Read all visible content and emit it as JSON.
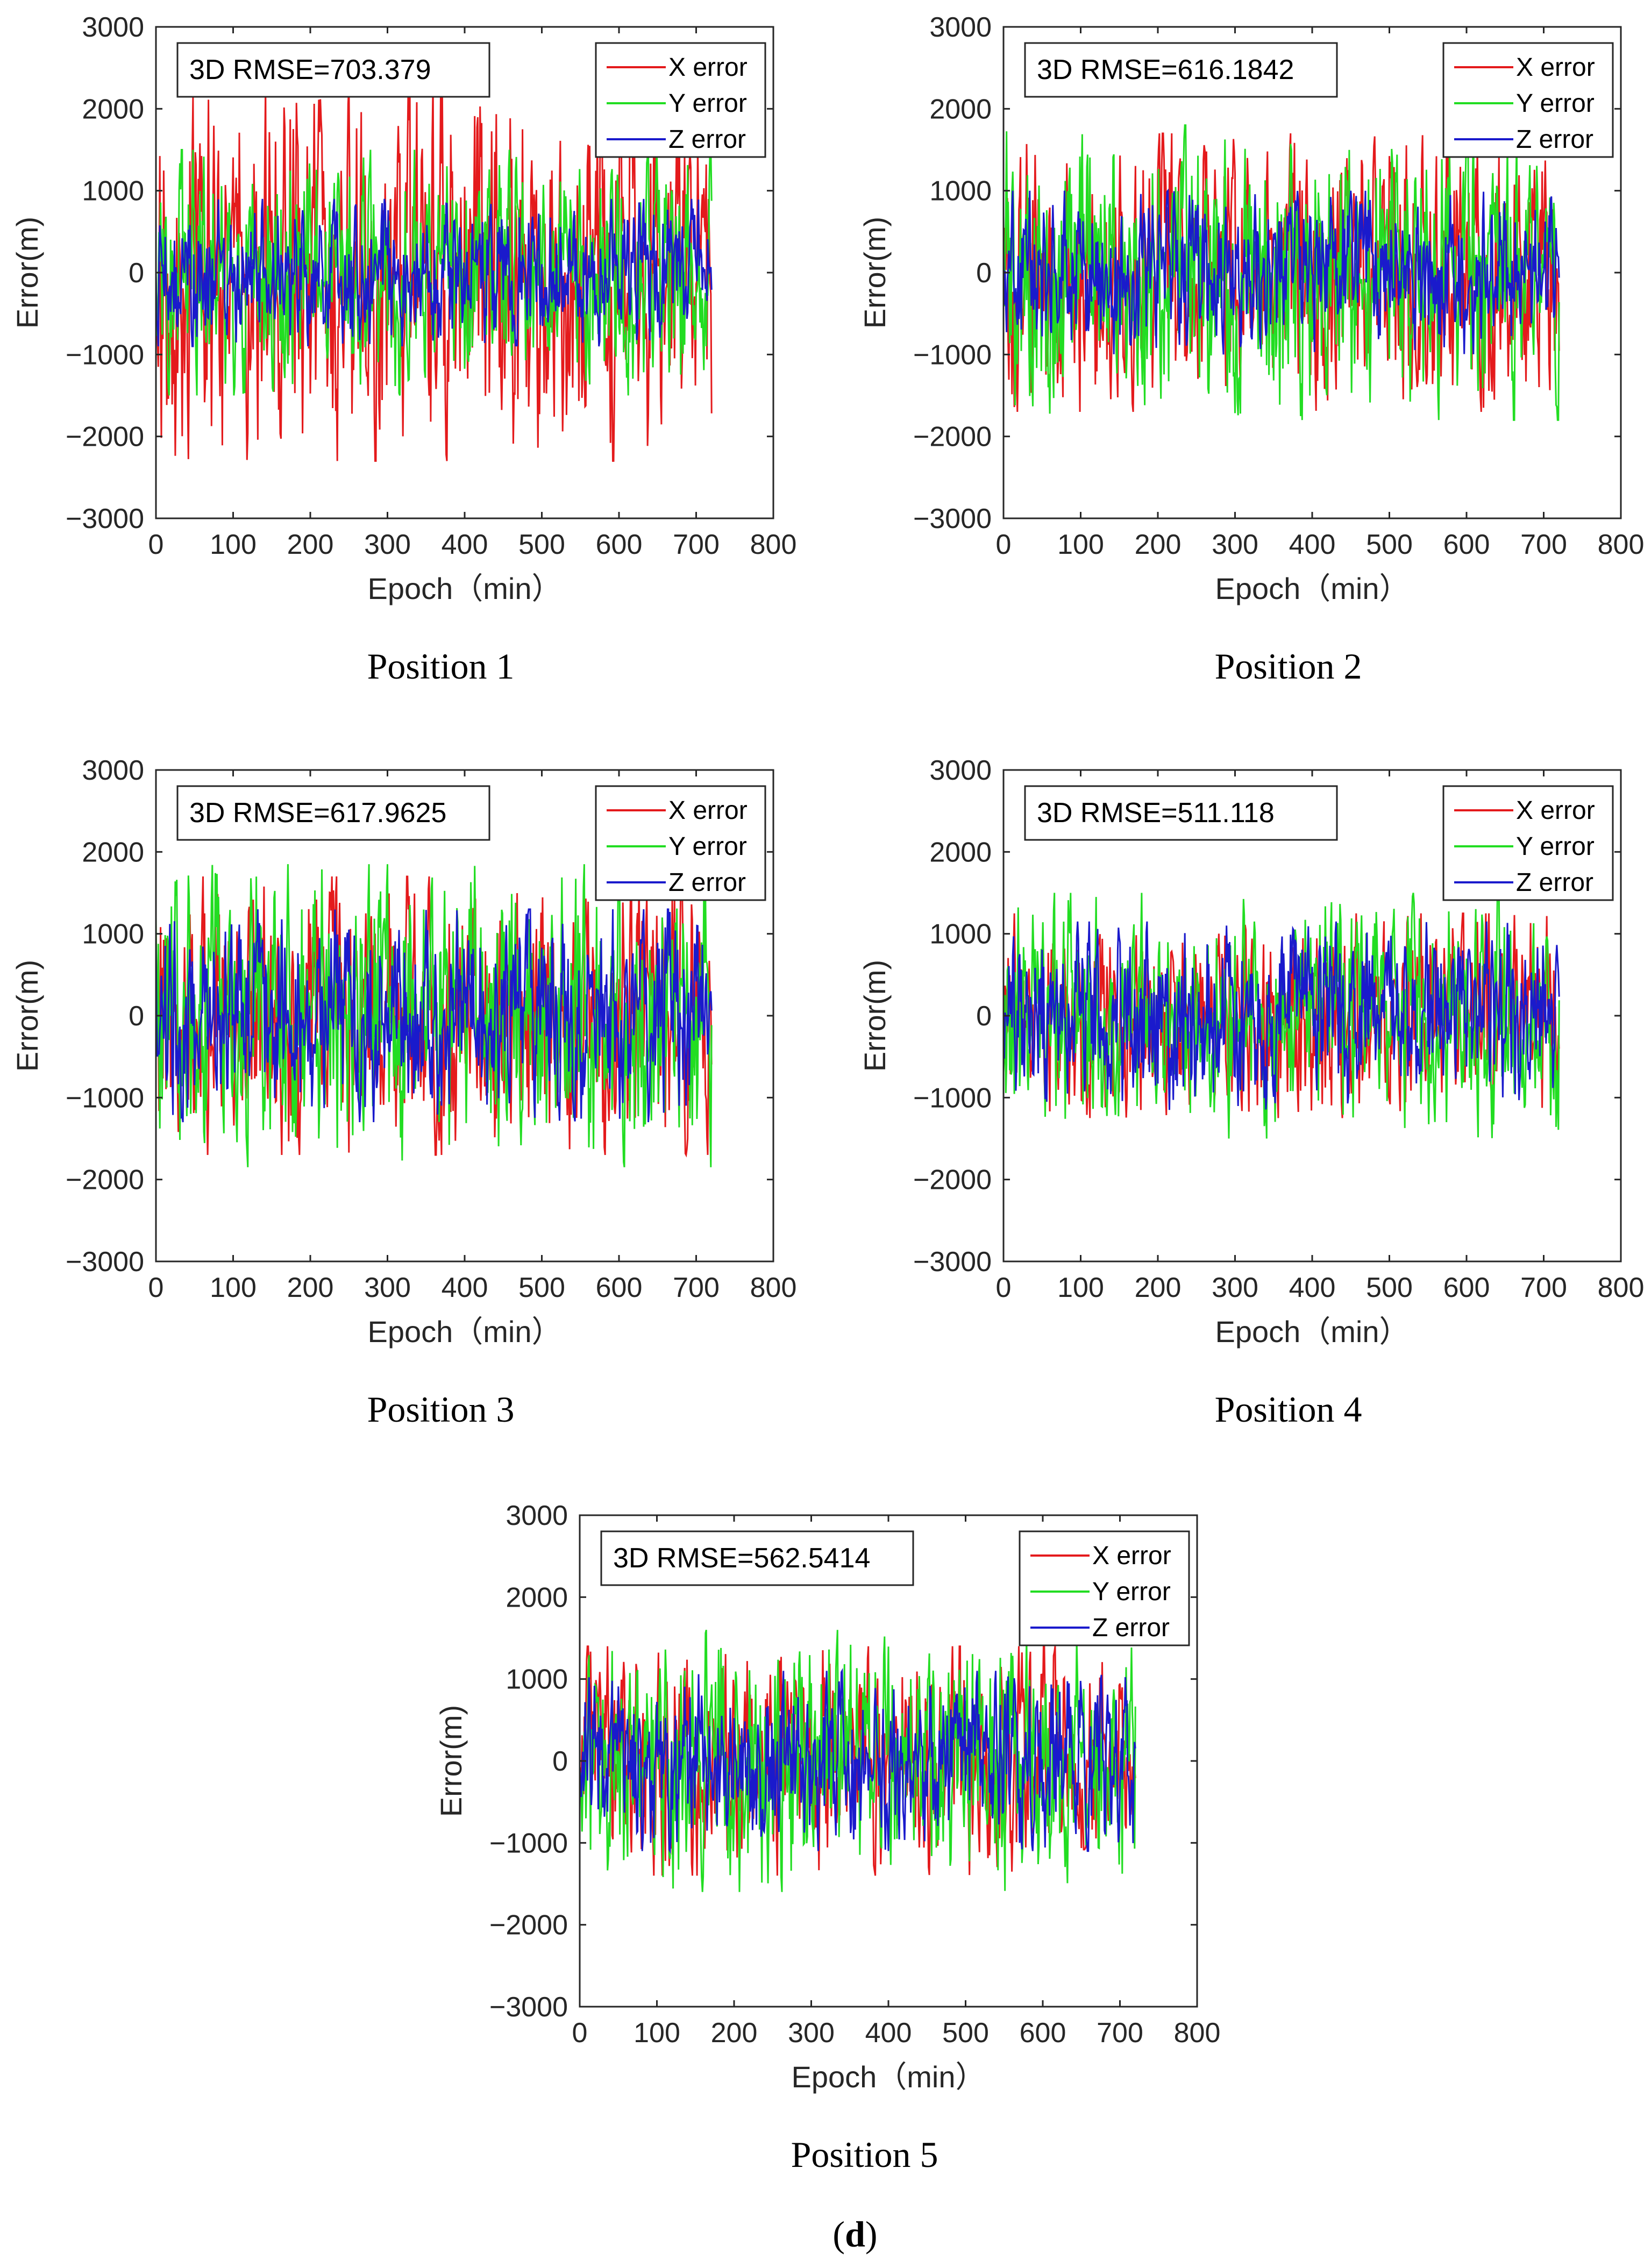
{
  "chart_data": [
    {
      "type": "line",
      "caption": "Position 1",
      "rmse_label": "3D RMSE=703.379",
      "xlabel": "Epoch（min）",
      "ylabel": "Error(m)",
      "xlim": [
        0,
        800
      ],
      "ylim": [
        -3000,
        3000
      ],
      "x_ticks": [
        "0",
        "100",
        "200",
        "300",
        "400",
        "500",
        "600",
        "700",
        "800"
      ],
      "y_ticks": [
        "3000",
        "2000",
        "1000",
        "0",
        "−1000",
        "−2000",
        "−3000"
      ],
      "x_range": [
        0,
        720
      ],
      "series": [
        {
          "name": "X error",
          "color": "#e41a1c",
          "amplitude": 2300,
          "seed": 11
        },
        {
          "name": "Y error",
          "color": "#22dd22",
          "amplitude": 1500,
          "seed": 12
        },
        {
          "name": "Z error",
          "color": "#1a1acc",
          "amplitude": 900,
          "seed": 13
        }
      ]
    },
    {
      "type": "line",
      "caption": "Position 2",
      "rmse_label": "3D RMSE=616.1842",
      "xlabel": "Epoch（min）",
      "ylabel": "Error(m)",
      "xlim": [
        0,
        800
      ],
      "ylim": [
        -3000,
        3000
      ],
      "x_ticks": [
        "0",
        "100",
        "200",
        "300",
        "400",
        "500",
        "600",
        "700",
        "800"
      ],
      "y_ticks": [
        "3000",
        "2000",
        "1000",
        "0",
        "−1000",
        "−2000",
        "−3000"
      ],
      "x_range": [
        0,
        720
      ],
      "series": [
        {
          "name": "X error",
          "color": "#e41a1c",
          "amplitude": 1700,
          "seed": 21
        },
        {
          "name": "Y error",
          "color": "#22dd22",
          "amplitude": 1800,
          "seed": 22
        },
        {
          "name": "Z error",
          "color": "#1a1acc",
          "amplitude": 1000,
          "seed": 23
        }
      ]
    },
    {
      "type": "line",
      "caption": "Position 3",
      "rmse_label": "3D RMSE=617.9625",
      "xlabel": "Epoch（min）",
      "ylabel": "Error(m)",
      "xlim": [
        0,
        800
      ],
      "ylim": [
        -3000,
        3000
      ],
      "x_ticks": [
        "0",
        "100",
        "200",
        "300",
        "400",
        "500",
        "600",
        "700",
        "800"
      ],
      "y_ticks": [
        "3000",
        "2000",
        "1000",
        "0",
        "−1000",
        "−2000",
        "−3000"
      ],
      "x_range": [
        0,
        720
      ],
      "series": [
        {
          "name": "X error",
          "color": "#e41a1c",
          "amplitude": 1700,
          "seed": 31
        },
        {
          "name": "Y error",
          "color": "#22dd22",
          "amplitude": 1850,
          "seed": 32
        },
        {
          "name": "Z error",
          "color": "#1a1acc",
          "amplitude": 1300,
          "seed": 33
        }
      ]
    },
    {
      "type": "line",
      "caption": "Position 4",
      "rmse_label": "3D RMSE=511.118",
      "xlabel": "Epoch（min）",
      "ylabel": "Error(m)",
      "xlim": [
        0,
        800
      ],
      "ylim": [
        -3000,
        3000
      ],
      "x_ticks": [
        "0",
        "100",
        "200",
        "300",
        "400",
        "500",
        "600",
        "700",
        "800"
      ],
      "y_ticks": [
        "3000",
        "2000",
        "1000",
        "0",
        "−1000",
        "−2000",
        "−3000"
      ],
      "x_range": [
        0,
        720
      ],
      "series": [
        {
          "name": "X error",
          "color": "#e41a1c",
          "amplitude": 1250,
          "seed": 41
        },
        {
          "name": "Y error",
          "color": "#22dd22",
          "amplitude": 1500,
          "seed": 42
        },
        {
          "name": "Z error",
          "color": "#1a1acc",
          "amplitude": 1150,
          "seed": 43
        }
      ]
    },
    {
      "type": "line",
      "caption": "Position 5",
      "rmse_label": "3D RMSE=562.5414",
      "xlabel": "Epoch（min）",
      "ylabel": "Error(m)",
      "xlim": [
        0,
        800
      ],
      "ylim": [
        -3000,
        3000
      ],
      "x_ticks": [
        "0",
        "100",
        "200",
        "300",
        "400",
        "500",
        "600",
        "700",
        "800"
      ],
      "y_ticks": [
        "3000",
        "2000",
        "1000",
        "0",
        "−1000",
        "−2000",
        "−3000"
      ],
      "x_range": [
        0,
        720
      ],
      "series": [
        {
          "name": "X error",
          "color": "#e41a1c",
          "amplitude": 1400,
          "seed": 51
        },
        {
          "name": "Y error",
          "color": "#22dd22",
          "amplitude": 1600,
          "seed": 52
        },
        {
          "name": "Z error",
          "color": "#1a1acc",
          "amplitude": 1100,
          "seed": 53
        }
      ]
    }
  ],
  "figure": {
    "panel_label": "d"
  }
}
